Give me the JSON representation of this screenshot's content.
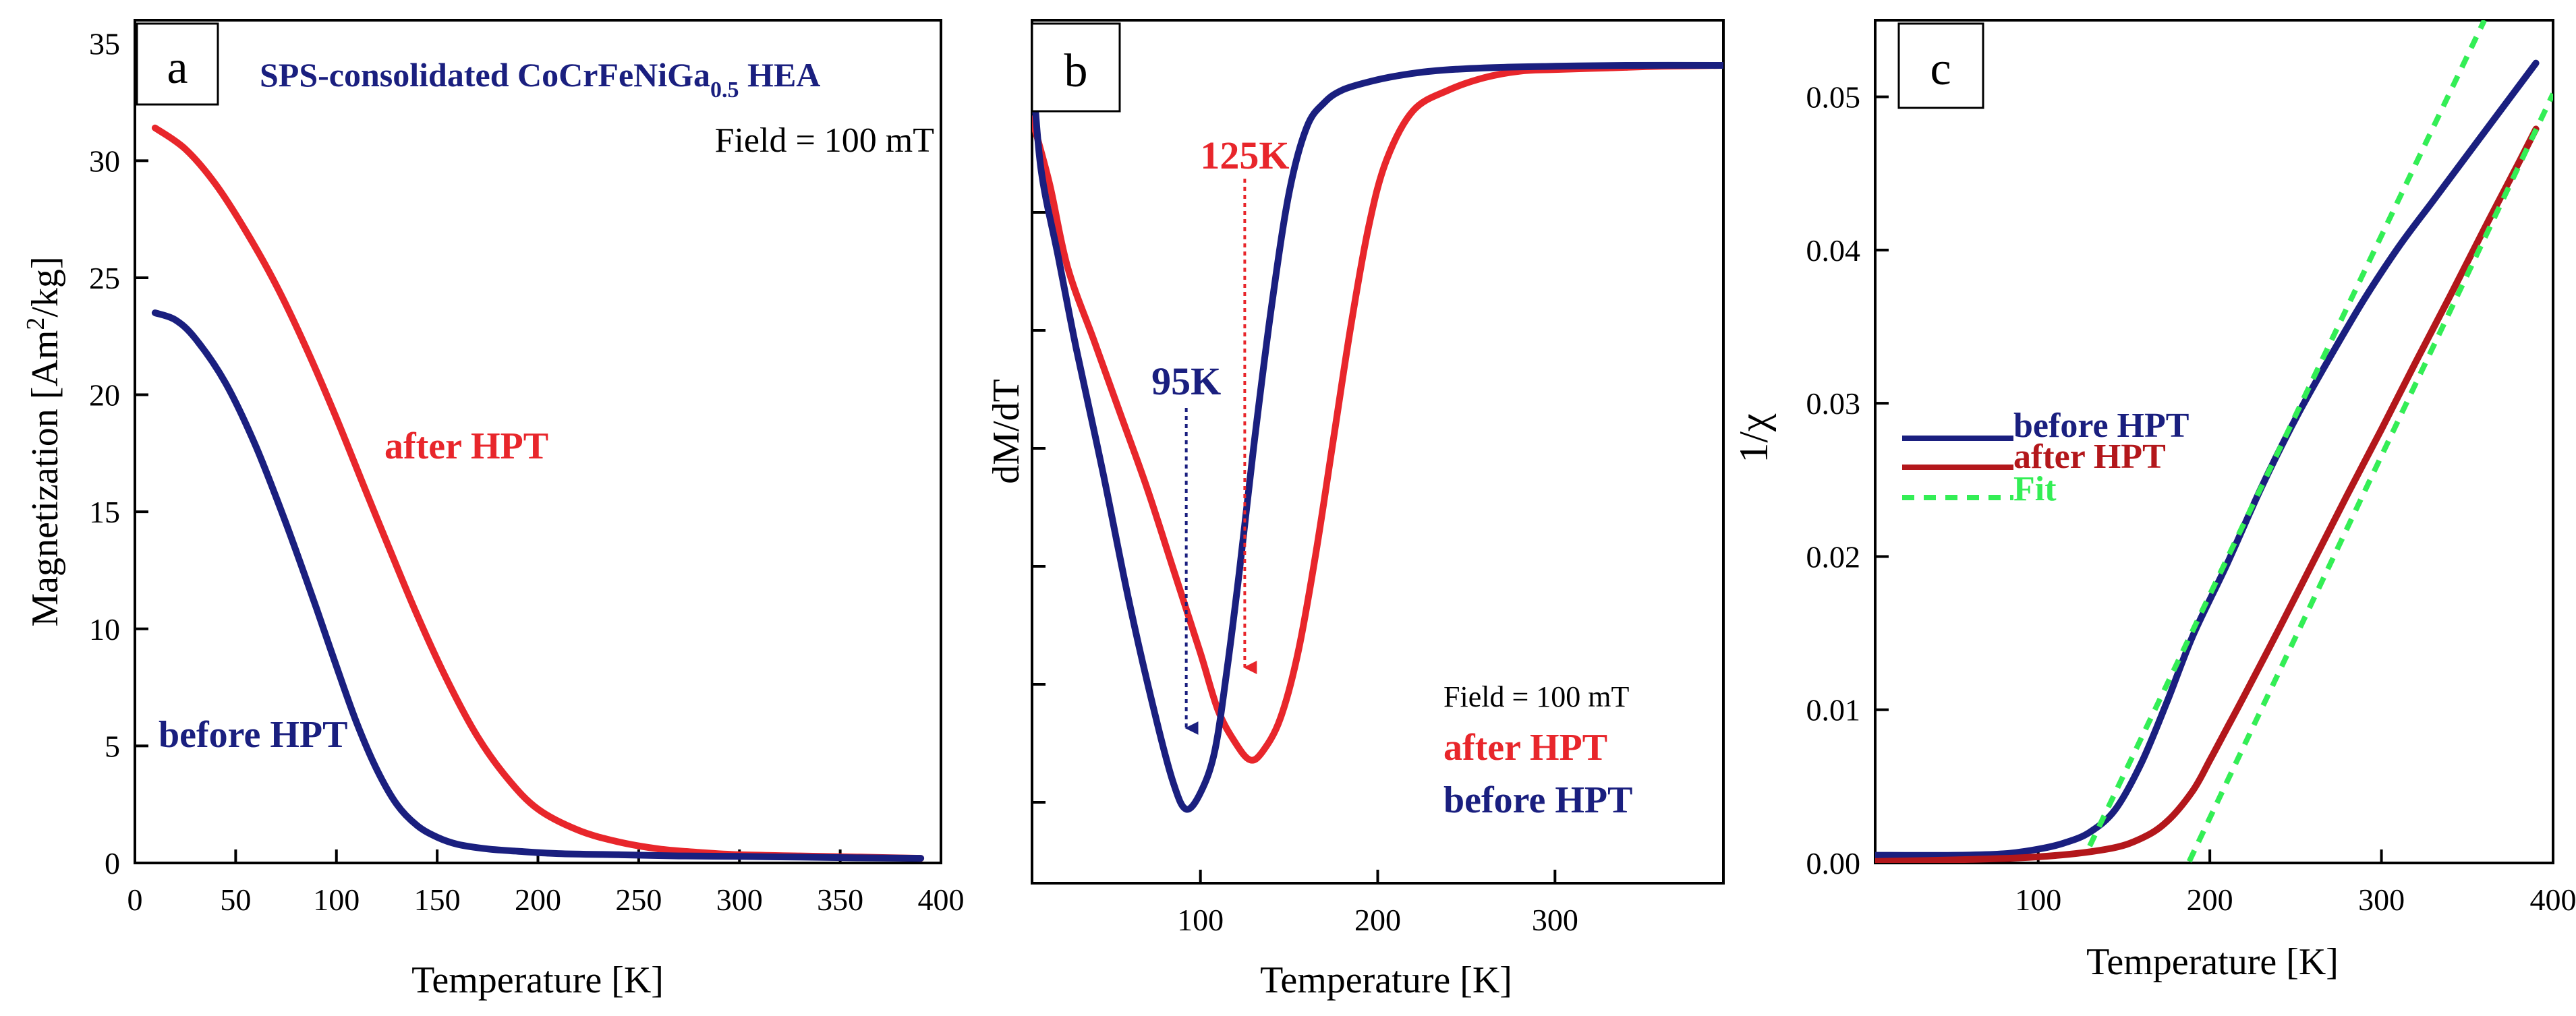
{
  "colors": {
    "red": "#e8262b",
    "blue": "#1a1f7f",
    "darkred": "#b3171b",
    "green": "#33ee55",
    "axis": "#000000"
  },
  "chart_data": [
    {
      "panel": "a",
      "type": "line",
      "title": "SPS-consolidated CoCrFeNiGa",
      "title_sub": "0.5",
      "title_tail": " HEA",
      "field_note": "Field = 100 mT",
      "xlabel": "Temperature [K]",
      "ylabel_pre": "Magnetization [Am",
      "ylabel_sup": "2",
      "ylabel_post": "/kg]",
      "xlim": [
        0,
        400
      ],
      "ylim": [
        0,
        36
      ],
      "xticks": [
        "0",
        "50",
        "100",
        "150",
        "200",
        "250",
        "300",
        "350",
        "400"
      ],
      "yticks": [
        "0",
        "5",
        "10",
        "15",
        "20",
        "25",
        "30",
        "35"
      ],
      "grid": false,
      "series": [
        {
          "name": "after HPT",
          "color": "red",
          "x": [
            10,
            25,
            40,
            55,
            70,
            85,
            100,
            115,
            125,
            140,
            155,
            170,
            185,
            200,
            220,
            240,
            260,
            280,
            300,
            330,
            360,
            390
          ],
          "y": [
            31.4,
            30.5,
            29.0,
            27.0,
            24.7,
            22.0,
            19.0,
            15.8,
            13.7,
            10.6,
            7.8,
            5.4,
            3.6,
            2.3,
            1.4,
            0.9,
            0.6,
            0.45,
            0.35,
            0.3,
            0.25,
            0.2
          ]
        },
        {
          "name": "before HPT",
          "color": "blue",
          "x": [
            10,
            20,
            30,
            45,
            60,
            75,
            90,
            100,
            110,
            120,
            130,
            140,
            150,
            160,
            175,
            190,
            210,
            240,
            270,
            300,
            330,
            360,
            390
          ],
          "y": [
            23.5,
            23.2,
            22.4,
            20.5,
            17.8,
            14.5,
            10.9,
            8.4,
            6.0,
            4.0,
            2.5,
            1.6,
            1.1,
            0.8,
            0.6,
            0.5,
            0.4,
            0.35,
            0.3,
            0.28,
            0.25,
            0.22,
            0.2
          ]
        }
      ]
    },
    {
      "panel": "b",
      "type": "line",
      "xlabel": "Temperature [K]",
      "ylabel": "dM/dT",
      "field_note": "Field = 100 mT",
      "xlim": [
        5,
        395
      ],
      "ylim": [
        -1.0,
        0.05
      ],
      "xticks": [
        "100",
        "200",
        "300"
      ],
      "grid": false,
      "annotations": [
        {
          "text": "125K",
          "color": "red",
          "x": 125
        },
        {
          "text": "95K",
          "color": "blue",
          "x": 92
        }
      ],
      "series": [
        {
          "name": "after HPT",
          "color": "red",
          "x": [
            5,
            15,
            25,
            40,
            55,
            70,
            85,
            100,
            110,
            120,
            128,
            135,
            145,
            155,
            165,
            175,
            185,
            195,
            205,
            220,
            240,
            260,
            280,
            300,
            330,
            360,
            395
          ],
          "y": [
            -0.07,
            -0.15,
            -0.25,
            -0.34,
            -0.43,
            -0.52,
            -0.62,
            -0.72,
            -0.79,
            -0.83,
            -0.85,
            -0.84,
            -0.8,
            -0.72,
            -0.6,
            -0.46,
            -0.32,
            -0.2,
            -0.12,
            -0.06,
            -0.035,
            -0.02,
            -0.012,
            -0.01,
            -0.008,
            -0.006,
            -0.005
          ]
        },
        {
          "name": "before HPT",
          "color": "blue",
          "x": [
            5,
            10,
            20,
            30,
            45,
            60,
            75,
            85,
            92,
            100,
            108,
            115,
            122,
            130,
            140,
            150,
            160,
            170,
            180,
            195,
            210,
            230,
            260,
            300,
            340,
            395
          ],
          "y": [
            0.0,
            -0.13,
            -0.24,
            -0.35,
            -0.5,
            -0.66,
            -0.8,
            -0.88,
            -0.91,
            -0.89,
            -0.84,
            -0.74,
            -0.62,
            -0.47,
            -0.3,
            -0.16,
            -0.08,
            -0.05,
            -0.035,
            -0.025,
            -0.018,
            -0.012,
            -0.008,
            -0.006,
            -0.005,
            -0.005
          ]
        }
      ]
    },
    {
      "panel": "c",
      "type": "line",
      "xlabel": "Temperature [K]",
      "ylabel": "1/χ",
      "xlim": [
        5,
        400
      ],
      "ylim": [
        0,
        0.055
      ],
      "xticks": [
        "100",
        "200",
        "300",
        "400"
      ],
      "yticks": [
        "0.00",
        "0.01",
        "0.02",
        "0.03",
        "0.04",
        "0.05"
      ],
      "grid": false,
      "series": [
        {
          "name": "before HPT",
          "color": "blue",
          "x": [
            5,
            50,
            80,
            100,
            115,
            130,
            145,
            160,
            175,
            190,
            210,
            230,
            250,
            270,
            290,
            310,
            330,
            350,
            370,
            390
          ],
          "y": [
            0.0005,
            0.0005,
            0.0006,
            0.0009,
            0.0013,
            0.002,
            0.0035,
            0.0065,
            0.0105,
            0.0148,
            0.0195,
            0.0245,
            0.029,
            0.033,
            0.0368,
            0.0402,
            0.0432,
            0.0462,
            0.0492,
            0.0522
          ]
        },
        {
          "name": "after HPT",
          "color": "darkred",
          "x": [
            5,
            50,
            100,
            140,
            160,
            175,
            190,
            200,
            210,
            220,
            240,
            260,
            280,
            300,
            320,
            340,
            360,
            380,
            390
          ],
          "y": [
            0.0001,
            0.0002,
            0.0004,
            0.0009,
            0.0016,
            0.0027,
            0.0047,
            0.0067,
            0.0088,
            0.0109,
            0.0152,
            0.0196,
            0.024,
            0.0283,
            0.0327,
            0.037,
            0.0414,
            0.0457,
            0.0479
          ]
        },
        {
          "name": "Fit",
          "color": "green",
          "style": "dotted",
          "x": [
            130,
            360
          ],
          "y": [
            0.0011,
            0.055
          ]
        },
        {
          "name": "Fit",
          "color": "green",
          "style": "dotted",
          "legend": false,
          "x": [
            188,
            400
          ],
          "y": [
            0.0001,
            0.0502
          ]
        }
      ]
    }
  ]
}
